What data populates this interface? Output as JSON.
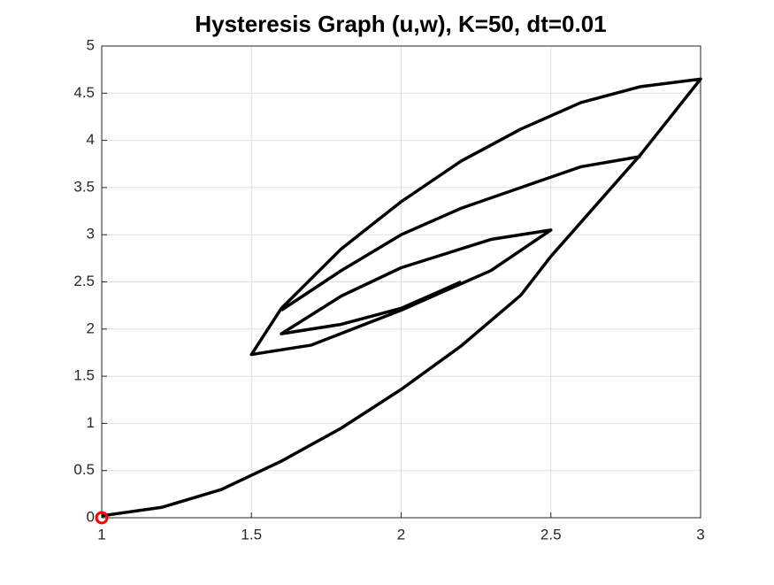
{
  "chart_data": {
    "type": "line",
    "title": "Hysteresis Graph (u,w), K=50, dt=0.01",
    "xlim": [
      1,
      3
    ],
    "ylim": [
      0,
      5
    ],
    "xticks": [
      1,
      1.5,
      2,
      2.5,
      3
    ],
    "yticks": [
      0,
      0.5,
      1,
      1.5,
      2,
      2.5,
      3,
      3.5,
      4,
      4.5,
      5
    ],
    "grid": true,
    "series": [
      {
        "color": "#000000",
        "marker": "none",
        "x": [
          1,
          1.2,
          1.4,
          1.6,
          1.8,
          2,
          2.2,
          2.4,
          2.5,
          2.6,
          2.8,
          3,
          2.8,
          2.6,
          2.4,
          2.2,
          2,
          1.8,
          1.6,
          1.5,
          1.7,
          2,
          2.3,
          2.5,
          2.3,
          2,
          1.8,
          1.6,
          1.8,
          2,
          2.2,
          null,
          2.8,
          2.6,
          2.4,
          2.2,
          2,
          1.8,
          1.6
        ],
        "values": [
          0.02,
          0.11,
          0.3,
          0.6,
          0.95,
          1.36,
          1.82,
          2.36,
          2.77,
          3.13,
          3.85,
          4.65,
          4.57,
          4.4,
          4.12,
          3.78,
          3.35,
          2.85,
          2.22,
          1.73,
          1.83,
          2.2,
          2.62,
          3.05,
          2.95,
          2.65,
          2.35,
          1.95,
          2.05,
          2.22,
          2.5,
          null,
          3.83,
          3.72,
          3.5,
          3.28,
          3.0,
          2.62,
          2.2
        ]
      },
      {
        "color": "#ff0000",
        "marker": "o",
        "x": [
          1
        ],
        "values": [
          0
        ]
      }
    ]
  }
}
